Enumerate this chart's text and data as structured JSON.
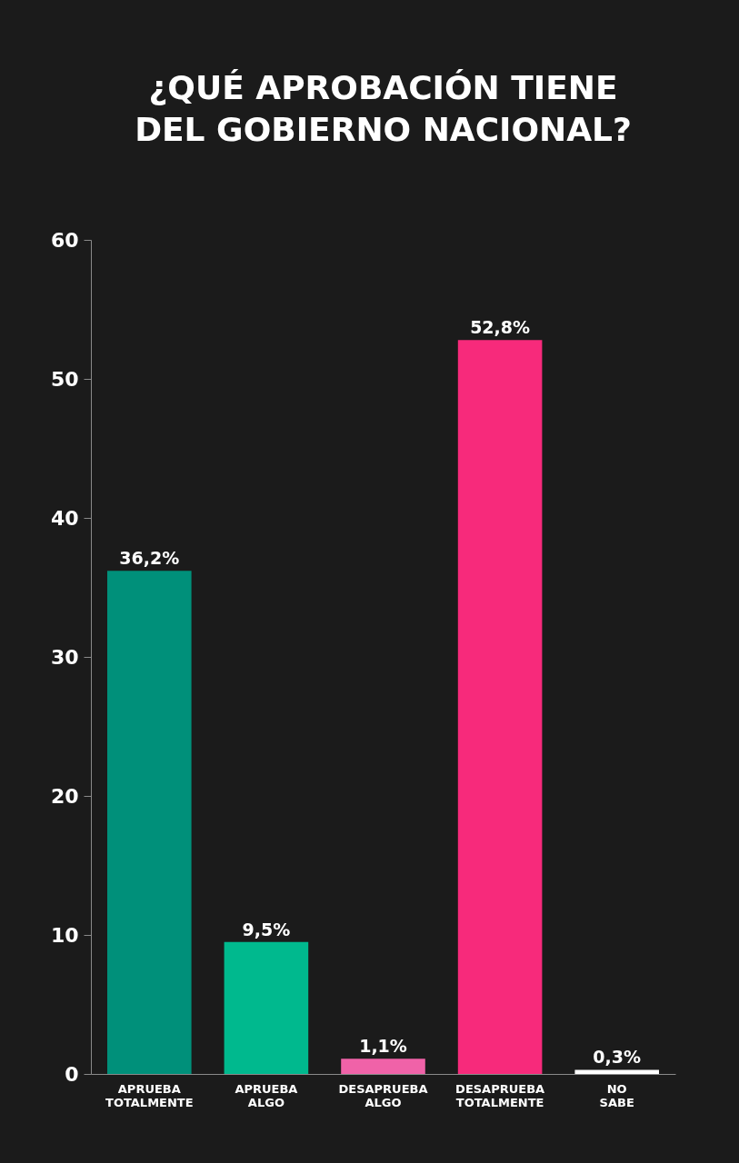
{
  "chart_data": {
    "type": "bar",
    "title": "¿QUÉ APROBACIÓN TIENE\nDEL GOBIERNO NACIONAL?",
    "categories": [
      "APRUEBA TOTALMENTE",
      "APRUEBA ALGO",
      "DESAPRUEBA ALGO",
      "DESAPRUEBA TOTALMENTE",
      "NO SABE"
    ],
    "values": [
      36.2,
      9.5,
      1.1,
      52.8,
      0.3
    ],
    "colors": [
      "#00907a",
      "#00b98e",
      "#f062a8",
      "#f72a7b",
      "#ffffff"
    ],
    "value_labels": [
      "36,2%",
      "9,5%",
      "1,1%",
      "52,8%",
      "0,3%"
    ],
    "ylim": [
      0,
      60
    ],
    "yticks": [
      0,
      10,
      20,
      30,
      40,
      50,
      60
    ],
    "grid": false
  }
}
